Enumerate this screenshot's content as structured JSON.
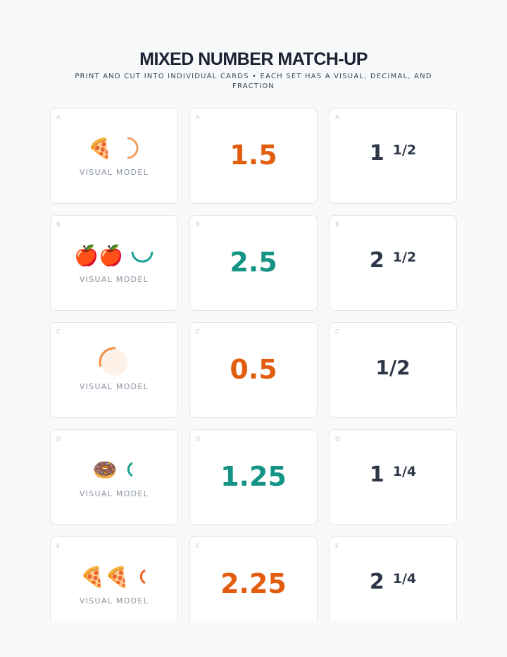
{
  "header": {
    "title": "MIXED NUMBER MATCH-UP",
    "subtitle": "PRINT AND CUT INTO INDIVIDUAL CARDS • EACH SET HAS A VISUAL, DECIMAL, AND FRACTION"
  },
  "cards": [
    {
      "letter": "A",
      "visual": "🍕",
      "visual_label": "VISUAL MODEL",
      "decimal": 1.5,
      "decimal_color": "#e35d0f",
      "whole": 1,
      "fraction": "1/2"
    },
    {
      "letter": "B",
      "visual": "🍎🍎",
      "visual_label": "VISUAL MODEL",
      "decimal": 2.5,
      "decimal_color": "#139484",
      "whole": 2,
      "fraction": "1/2"
    },
    {
      "letter": "C",
      "visual_label": "VISUAL MODEL",
      "decimal": 0.5,
      "decimal_color": "#e35d0f",
      "fraction": "1/2"
    },
    {
      "letter": "D",
      "visual": "🍩",
      "visual_label": "VISUAL MODEL",
      "decimal": 1.25,
      "decimal_color": "#139484",
      "whole": 1,
      "fraction": "1/4"
    },
    {
      "letter": "E",
      "visual": "🍕🍕",
      "visual_label": "VISUAL MODEL",
      "decimal": 2.25,
      "decimal_color": "#e35d0f",
      "whole": 2,
      "fraction": "1/4"
    }
  ]
}
